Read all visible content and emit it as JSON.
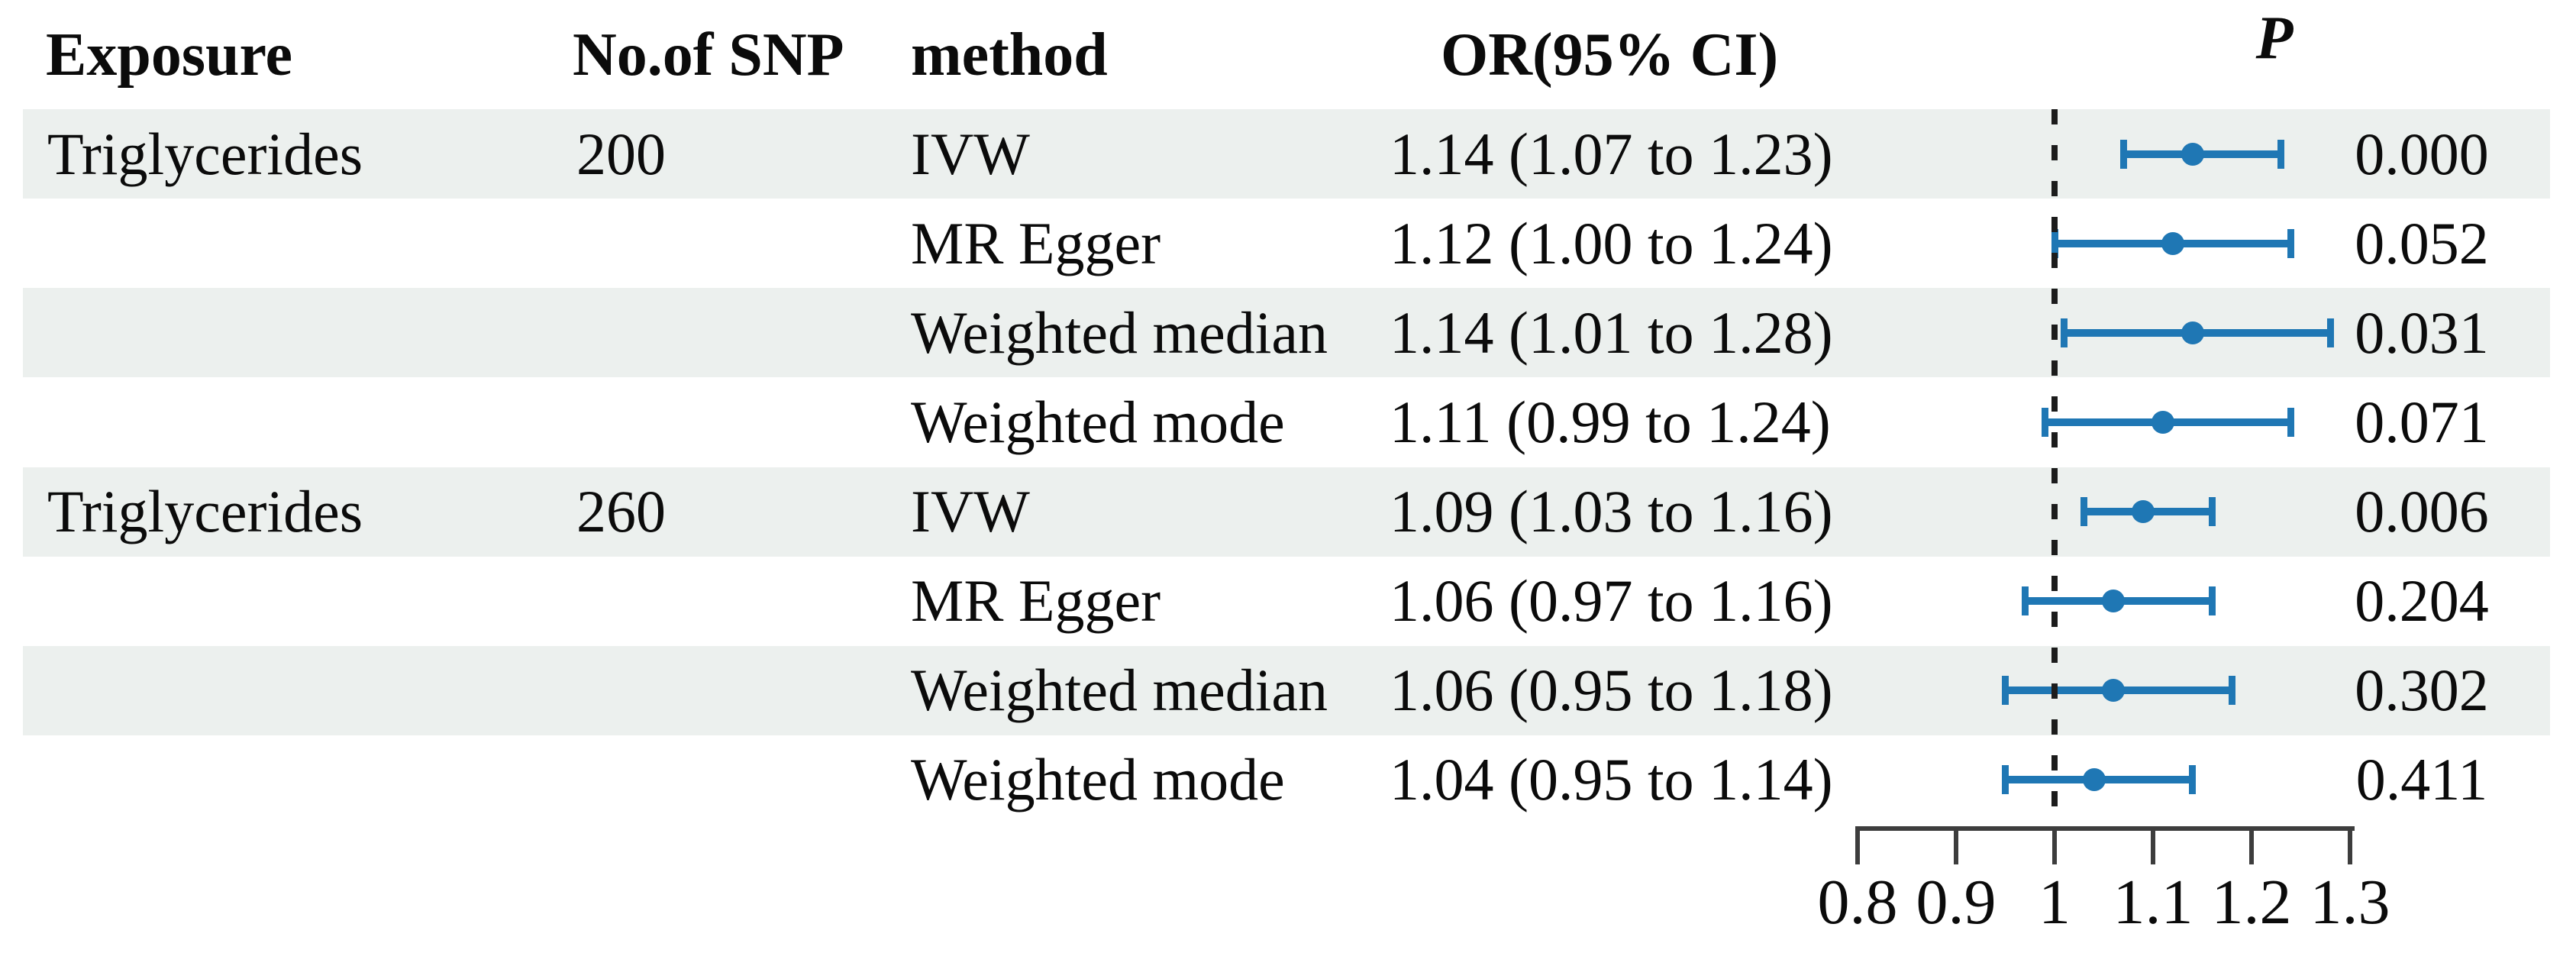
{
  "figure": {
    "marker_color": "#1f77b4",
    "stripe_color": "#ecf0ee",
    "axis_color": "#3d3d3d",
    "text_color": "#0b0b0b"
  },
  "chart_data": {
    "type": "forest",
    "header": {
      "exposure": "Exposure",
      "snp": "No.of SNP",
      "method": "method",
      "or_ci": "OR(95% CI)",
      "p": "P"
    },
    "rows": [
      {
        "exposure": "Triglycerides",
        "snp": "200",
        "method": "IVW",
        "or_ci": "1.14 (1.07 to 1.23)",
        "or": 1.14,
        "lo": 1.07,
        "hi": 1.23,
        "p": "0.000"
      },
      {
        "exposure": "",
        "snp": "",
        "method": "MR Egger",
        "or_ci": "1.12 (1.00 to 1.24)",
        "or": 1.12,
        "lo": 1.0,
        "hi": 1.24,
        "p": "0.052"
      },
      {
        "exposure": "",
        "snp": "",
        "method": "Weighted median",
        "or_ci": "1.14 (1.01 to 1.28)",
        "or": 1.14,
        "lo": 1.01,
        "hi": 1.28,
        "p": "0.031"
      },
      {
        "exposure": "",
        "snp": "",
        "method": "Weighted mode",
        "or_ci": "1.11 (0.99 to 1.24)",
        "or": 1.11,
        "lo": 0.99,
        "hi": 1.24,
        "p": "0.071"
      },
      {
        "exposure": "Triglycerides",
        "snp": "260",
        "method": "IVW",
        "or_ci": "1.09 (1.03 to 1.16)",
        "or": 1.09,
        "lo": 1.03,
        "hi": 1.16,
        "p": "0.006"
      },
      {
        "exposure": "",
        "snp": "",
        "method": "MR Egger",
        "or_ci": "1.06 (0.97 to 1.16)",
        "or": 1.06,
        "lo": 0.97,
        "hi": 1.16,
        "p": "0.204"
      },
      {
        "exposure": "",
        "snp": "",
        "method": "Weighted median",
        "or_ci": "1.06 (0.95 to 1.18)",
        "or": 1.06,
        "lo": 0.95,
        "hi": 1.18,
        "p": "0.302"
      },
      {
        "exposure": "",
        "snp": "",
        "method": "Weighted mode",
        "or_ci": "1.04 (0.95 to 1.14)",
        "or": 1.04,
        "lo": 0.95,
        "hi": 1.14,
        "p": "0.411"
      }
    ],
    "axis": {
      "tick_values": [
        0.8,
        0.9,
        1.0,
        1.1,
        1.2,
        1.3
      ],
      "tick_labels": [
        "0.8",
        "0.9",
        "1",
        "1.1",
        "1.2",
        "1.3"
      ],
      "ref_line": 1.0,
      "xlim": [
        0.8,
        1.3
      ],
      "scale": "linear",
      "grid": false
    }
  }
}
